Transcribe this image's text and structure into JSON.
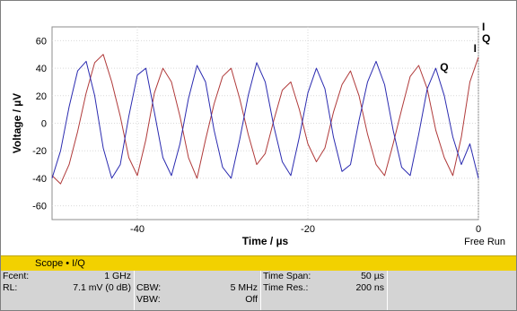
{
  "chart_data": {
    "type": "line",
    "xlabel": "Time / µs",
    "ylabel": "Voltage / µV",
    "xlim": [
      -50,
      0
    ],
    "ylim": [
      -70,
      70
    ],
    "x_ticks": [
      -40,
      -20,
      0
    ],
    "y_ticks": [
      60,
      40,
      20,
      0,
      -20,
      -40,
      -60
    ],
    "x_tick_labels": [
      "-40",
      "-20",
      "0"
    ],
    "y_tick_labels": [
      "60",
      "40",
      "20",
      "0",
      "-20",
      "-40",
      "-60"
    ],
    "grid": true,
    "legend": [
      "I",
      "Q"
    ],
    "legend_placement": "top-right",
    "trigger_label": "Free Run",
    "series": [
      {
        "name": "I",
        "color": "#b03a3a",
        "x": [
          -50,
          -49,
          -48,
          -47,
          -46,
          -45,
          -44,
          -43,
          -42,
          -41,
          -40,
          -39,
          -38,
          -37,
          -36,
          -35,
          -34,
          -33,
          -32,
          -31,
          -30,
          -29,
          -28,
          -27,
          -26,
          -25,
          -24,
          -23,
          -22,
          -21,
          -20,
          -19,
          -18,
          -17,
          -16,
          -15,
          -14,
          -13,
          -12,
          -11,
          -10,
          -9,
          -8,
          -7,
          -6,
          -5,
          -4,
          -3,
          -2,
          -1,
          0
        ],
        "values": [
          -38,
          -44,
          -30,
          -6,
          22,
          44,
          50,
          30,
          5,
          -25,
          -38,
          -12,
          22,
          40,
          30,
          5,
          -25,
          -40,
          -12,
          14,
          34,
          40,
          18,
          -8,
          -30,
          -22,
          2,
          24,
          30,
          10,
          -15,
          -28,
          -18,
          8,
          28,
          38,
          20,
          -8,
          -30,
          -38,
          -15,
          10,
          34,
          42,
          25,
          -5,
          -25,
          -38,
          -10,
          30,
          48
        ],
        "markers": [
          "I"
        ]
      },
      {
        "name": "Q",
        "color": "#2b2bb0",
        "x": [
          -50,
          -49,
          -48,
          -47,
          -46,
          -45,
          -44,
          -43,
          -42,
          -41,
          -40,
          -39,
          -38,
          -37,
          -36,
          -35,
          -34,
          -33,
          -32,
          -31,
          -30,
          -29,
          -28,
          -27,
          -26,
          -25,
          -24,
          -23,
          -22,
          -21,
          -20,
          -19,
          -18,
          -17,
          -16,
          -15,
          -14,
          -13,
          -12,
          -11,
          -10,
          -9,
          -8,
          -7,
          -6,
          -5,
          -4,
          -3,
          -2,
          -1,
          0
        ],
        "values": [
          -40,
          -20,
          12,
          38,
          45,
          20,
          -18,
          -40,
          -30,
          5,
          35,
          40,
          8,
          -25,
          -38,
          -15,
          18,
          42,
          30,
          -5,
          -32,
          -40,
          -12,
          20,
          44,
          30,
          -2,
          -28,
          -38,
          -10,
          22,
          40,
          25,
          -10,
          -35,
          -30,
          2,
          30,
          45,
          28,
          -5,
          -32,
          -38,
          -8,
          25,
          40,
          20,
          -10,
          -30,
          -15,
          -40
        ],
        "markers": [
          "Q"
        ]
      }
    ]
  },
  "status": {
    "title": "Scope • I/Q"
  },
  "info": {
    "fcent_label": "Fcent:",
    "fcent_value": "1 GHz",
    "rl_label": "RL:",
    "rl_value": "7.1 mV (0 dB)",
    "cbw_label": "CBW:",
    "cbw_value": "5 MHz",
    "vbw_label": "VBW:",
    "vbw_value": "Off",
    "span_label": "Time Span:",
    "span_value": "50 µs",
    "res_label": "Time Res.:",
    "res_value": "200 ns"
  }
}
